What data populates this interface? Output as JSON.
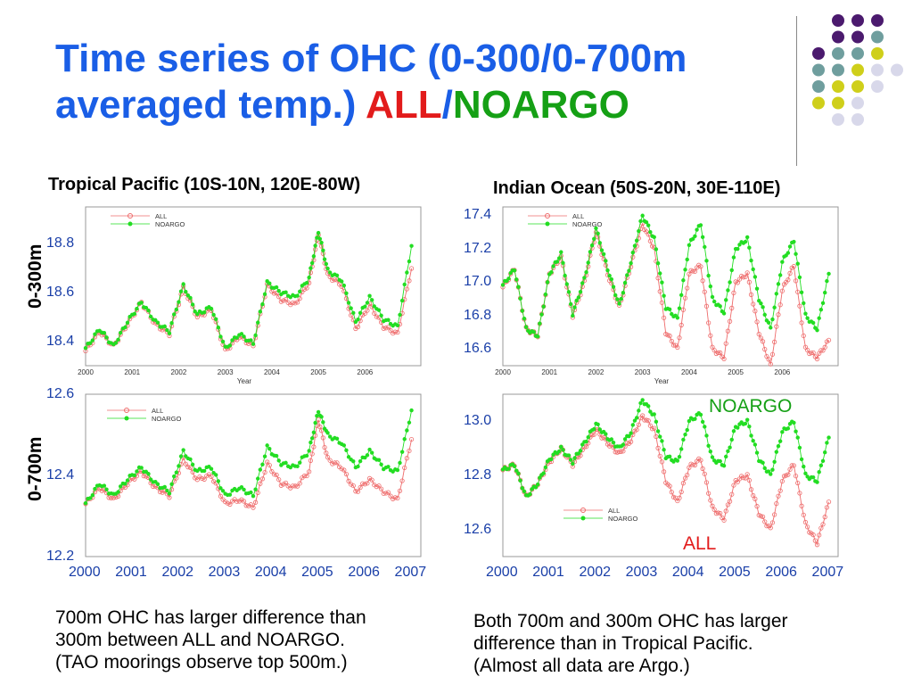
{
  "title": {
    "main": "Time series of OHC (0-300/0-700m averaged temp.) ",
    "all": "ALL",
    "slash": "/",
    "noargo": "NOARGO"
  },
  "columns": {
    "left": "Tropical Pacific (10S-10N, 120E-80W)",
    "right": "Indian Ocean (50S-20N, 30E-110E)"
  },
  "rows": {
    "top": "0-300m",
    "bottom": "0-700m"
  },
  "colors": {
    "all": "#ee6b6b",
    "noargo": "#22dd22",
    "title": "#1a5ee6"
  },
  "notes": {
    "left": [
      "700m OHC has larger difference than",
      "300m between ALL and NOARGO.",
      "(TAO moorings observe top 500m.)"
    ],
    "right": [
      "Both 700m and 300m OHC has larger",
      "difference than in Tropical Pacific.",
      "(Almost all data are Argo.)"
    ]
  },
  "annotations": {
    "noargo": "NOARGO",
    "all": "ALL"
  },
  "legend": {
    "all": "ALL",
    "noargo": "NOARGO"
  },
  "xaxis_title": "Year",
  "x_ticks_outer": [
    "2000",
    "2001",
    "2002",
    "2003",
    "2004",
    "2005",
    "2006",
    "2007"
  ],
  "x_ticks_inner": [
    "2000",
    "2001",
    "2002",
    "2003",
    "2004",
    "2005",
    "2006"
  ],
  "chart_data": [
    {
      "type": "line",
      "panel": "Tropical Pacific 0-300m",
      "xlabel": "Year",
      "ylim": [
        18.3,
        18.95
      ],
      "yticks": [
        "18.8",
        "18.6",
        "18.4"
      ],
      "series": [
        {
          "name": "ALL",
          "x": [
            2000.0,
            2000.3,
            2000.6,
            2000.9,
            2001.2,
            2001.5,
            2001.8,
            2002.1,
            2002.4,
            2002.7,
            2003.0,
            2003.3,
            2003.6,
            2003.9,
            2004.2,
            2004.5,
            2004.8,
            2005.0,
            2005.2,
            2005.5,
            2005.8,
            2006.1,
            2006.4,
            2006.7,
            2007.0
          ],
          "y": [
            18.36,
            18.44,
            18.38,
            18.47,
            18.56,
            18.47,
            18.43,
            18.62,
            18.5,
            18.53,
            18.36,
            18.42,
            18.38,
            18.63,
            18.57,
            18.55,
            18.64,
            18.84,
            18.67,
            18.63,
            18.45,
            18.55,
            18.46,
            18.43,
            18.7
          ]
        },
        {
          "name": "NOARGO",
          "x": [
            2000.0,
            2000.3,
            2000.6,
            2000.9,
            2001.2,
            2001.5,
            2001.8,
            2002.1,
            2002.4,
            2002.7,
            2003.0,
            2003.3,
            2003.6,
            2003.9,
            2004.2,
            2004.5,
            2004.8,
            2005.0,
            2005.2,
            2005.5,
            2005.8,
            2006.1,
            2006.4,
            2006.7,
            2007.0
          ],
          "y": [
            18.37,
            18.45,
            18.38,
            18.48,
            18.56,
            18.48,
            18.44,
            18.63,
            18.51,
            18.54,
            18.37,
            18.43,
            18.39,
            18.64,
            18.6,
            18.58,
            18.66,
            18.85,
            18.69,
            18.65,
            18.48,
            18.58,
            18.49,
            18.46,
            18.79
          ]
        }
      ]
    },
    {
      "type": "line",
      "panel": "Indian Ocean 0-300m",
      "xlabel": "Year",
      "ylim": [
        16.5,
        17.45
      ],
      "yticks": [
        "17.4",
        "17.2",
        "17.0",
        "16.8",
        "16.6"
      ],
      "series": [
        {
          "name": "ALL",
          "x": [
            2000.0,
            2000.25,
            2000.5,
            2000.75,
            2001.0,
            2001.25,
            2001.5,
            2001.75,
            2002.0,
            2002.25,
            2002.5,
            2002.75,
            2003.0,
            2003.25,
            2003.5,
            2003.75,
            2004.0,
            2004.25,
            2004.5,
            2004.75,
            2005.0,
            2005.25,
            2005.5,
            2005.75,
            2006.0,
            2006.25,
            2006.5,
            2006.75,
            2007.0
          ],
          "y": [
            16.97,
            17.08,
            16.72,
            16.68,
            17.05,
            17.15,
            16.8,
            17.0,
            17.3,
            17.05,
            16.85,
            17.1,
            17.35,
            17.2,
            16.7,
            16.6,
            17.05,
            17.1,
            16.6,
            16.55,
            17.0,
            17.05,
            16.7,
            16.5,
            16.95,
            17.1,
            16.6,
            16.55,
            16.65
          ]
        },
        {
          "name": "NOARGO",
          "x": [
            2000.0,
            2000.25,
            2000.5,
            2000.75,
            2001.0,
            2001.25,
            2001.5,
            2001.75,
            2002.0,
            2002.25,
            2002.5,
            2002.75,
            2003.0,
            2003.25,
            2003.5,
            2003.75,
            2004.0,
            2004.25,
            2004.5,
            2004.75,
            2005.0,
            2005.25,
            2005.5,
            2005.75,
            2006.0,
            2006.25,
            2006.5,
            2006.75,
            2007.0
          ],
          "y": [
            16.98,
            17.08,
            16.72,
            16.68,
            17.05,
            17.17,
            16.81,
            17.02,
            17.32,
            17.08,
            16.86,
            17.12,
            17.4,
            17.26,
            16.85,
            16.78,
            17.22,
            17.35,
            16.9,
            16.82,
            17.2,
            17.26,
            16.9,
            16.72,
            17.12,
            17.25,
            16.8,
            16.72,
            17.05
          ]
        }
      ]
    },
    {
      "type": "line",
      "panel": "Tropical Pacific 0-700m",
      "ylim": [
        12.2,
        12.6
      ],
      "yticks": [
        "12.6",
        "12.4",
        "12.2"
      ],
      "x_ticks": [
        "2000",
        "2001",
        "2002",
        "2003",
        "2004",
        "2005",
        "2006",
        "2007"
      ],
      "series": [
        {
          "name": "ALL",
          "x": [
            2000.0,
            2000.3,
            2000.6,
            2000.9,
            2001.2,
            2001.5,
            2001.8,
            2002.1,
            2002.4,
            2002.7,
            2003.0,
            2003.3,
            2003.6,
            2003.9,
            2004.2,
            2004.5,
            2004.8,
            2005.0,
            2005.2,
            2005.5,
            2005.8,
            2006.1,
            2006.4,
            2006.7,
            2007.0
          ],
          "y": [
            12.33,
            12.37,
            12.34,
            12.38,
            12.41,
            12.37,
            12.35,
            12.44,
            12.39,
            12.4,
            12.33,
            12.34,
            12.32,
            12.43,
            12.38,
            12.37,
            12.41,
            12.54,
            12.44,
            12.42,
            12.36,
            12.39,
            12.36,
            12.34,
            12.49
          ]
        },
        {
          "name": "NOARGO",
          "x": [
            2000.0,
            2000.3,
            2000.6,
            2000.9,
            2001.2,
            2001.5,
            2001.8,
            2002.1,
            2002.4,
            2002.7,
            2003.0,
            2003.3,
            2003.6,
            2003.9,
            2004.2,
            2004.5,
            2004.8,
            2005.0,
            2005.2,
            2005.5,
            2005.8,
            2006.1,
            2006.4,
            2006.7,
            2007.0
          ],
          "y": [
            12.33,
            12.38,
            12.35,
            12.39,
            12.42,
            12.38,
            12.36,
            12.46,
            12.41,
            12.42,
            12.35,
            12.37,
            12.35,
            12.47,
            12.43,
            12.42,
            12.46,
            12.56,
            12.5,
            12.48,
            12.42,
            12.46,
            12.42,
            12.41,
            12.56
          ]
        }
      ]
    },
    {
      "type": "line",
      "panel": "Indian Ocean 0-700m",
      "ylim": [
        12.5,
        13.1
      ],
      "yticks": [
        "13.0",
        "12.8",
        "12.6"
      ],
      "x_ticks": [
        "2000",
        "2001",
        "2002",
        "2003",
        "2004",
        "2005",
        "2006",
        "2007"
      ],
      "series": [
        {
          "name": "ALL",
          "x": [
            2000.0,
            2000.25,
            2000.5,
            2000.75,
            2001.0,
            2001.25,
            2001.5,
            2001.75,
            2002.0,
            2002.25,
            2002.5,
            2002.75,
            2003.0,
            2003.25,
            2003.5,
            2003.75,
            2004.0,
            2004.25,
            2004.5,
            2004.75,
            2005.0,
            2005.25,
            2005.5,
            2005.75,
            2006.0,
            2006.25,
            2006.5,
            2006.75,
            2007.0
          ],
          "y": [
            12.82,
            12.84,
            12.72,
            12.77,
            12.85,
            12.9,
            12.84,
            12.9,
            12.97,
            12.92,
            12.88,
            12.93,
            13.02,
            12.97,
            12.78,
            12.7,
            12.83,
            12.86,
            12.68,
            12.64,
            12.78,
            12.8,
            12.66,
            12.6,
            12.78,
            12.84,
            12.62,
            12.55,
            12.7
          ]
        },
        {
          "name": "NOARGO",
          "x": [
            2000.0,
            2000.25,
            2000.5,
            2000.75,
            2001.0,
            2001.25,
            2001.5,
            2001.75,
            2002.0,
            2002.25,
            2002.5,
            2002.75,
            2003.0,
            2003.25,
            2003.5,
            2003.75,
            2004.0,
            2004.25,
            2004.5,
            2004.75,
            2005.0,
            2005.25,
            2005.5,
            2005.75,
            2006.0,
            2006.25,
            2006.5,
            2006.75,
            2007.0
          ],
          "y": [
            12.82,
            12.84,
            12.72,
            12.77,
            12.86,
            12.9,
            12.85,
            12.92,
            12.99,
            12.94,
            12.9,
            12.96,
            13.08,
            13.02,
            12.87,
            12.85,
            13.0,
            13.03,
            12.86,
            12.84,
            12.98,
            13.0,
            12.86,
            12.8,
            12.96,
            13.0,
            12.8,
            12.78,
            12.94
          ]
        }
      ]
    }
  ]
}
